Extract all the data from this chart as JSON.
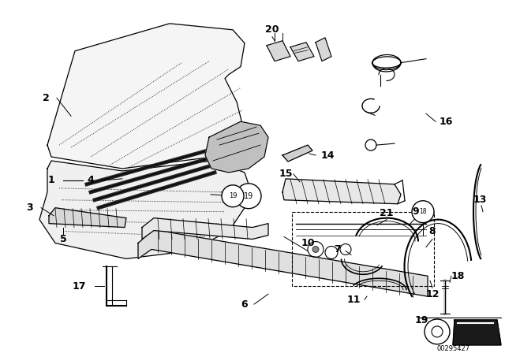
{
  "background_color": "#ffffff",
  "diagram_number": "00295427",
  "figsize": [
    6.4,
    4.48
  ],
  "dpi": 100
}
